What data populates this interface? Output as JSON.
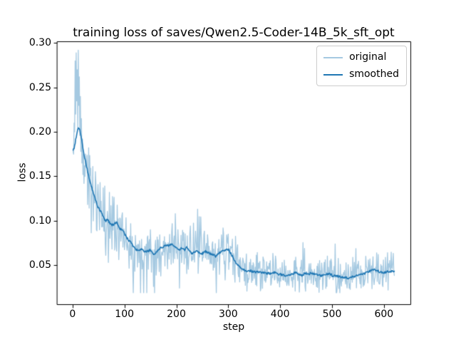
{
  "chart_data": {
    "type": "line",
    "title": "training loss of saves/Qwen2.5-Coder-14B_5k_sft_opt",
    "xlabel": "step",
    "ylabel": "loss",
    "xlim": [
      -30,
      651
    ],
    "ylim": [
      0.006,
      0.302
    ],
    "xticks": [
      0,
      100,
      200,
      300,
      400,
      500,
      600
    ],
    "xtick_labels": [
      "0",
      "100",
      "200",
      "300",
      "400",
      "500",
      "600"
    ],
    "yticks": [
      0.05,
      0.1,
      0.15,
      0.2,
      0.25,
      0.3
    ],
    "ytick_labels": [
      "0.05",
      "0.10",
      "0.15",
      "0.20",
      "0.25",
      "0.30"
    ],
    "grid": false,
    "background": "#ffffff",
    "spine_color": "#000000",
    "legend": {
      "position": "upper-right",
      "border_color": "#cccccc",
      "entries": [
        "original",
        "smoothed"
      ]
    },
    "x_range": [
      1,
      620
    ],
    "series": [
      {
        "name": "original",
        "color": "#1f77b4",
        "alpha": 0.4,
        "linewidth": 1.3,
        "description": "raw noisy training loss; reconstructed as smoothed curve plus seeded noise",
        "head_start_step": 1,
        "head": [
          0.178,
          0.175,
          0.21,
          0.2,
          0.28,
          0.22,
          0.289,
          0.235,
          0.27,
          0.205,
          0.292,
          0.23,
          0.262,
          0.196,
          0.24,
          0.178,
          0.215,
          0.165,
          0.192,
          0.152,
          0.175,
          0.142,
          0.162,
          0.15
        ],
        "noise": {
          "seed": 11,
          "base": 0.004,
          "scale": 0.22,
          "spike_prob": 0.07,
          "spike_mult": 2.0,
          "clamp_min": 0.019,
          "clamp_max": 0.292
        }
      },
      {
        "name": "smoothed",
        "color": "#1f77b4",
        "alpha": 1.0,
        "linewidth": 1.6,
        "jitter": 0.0012,
        "jitter_seed": 99,
        "keypoints": {
          "x": [
            1,
            3,
            5,
            8,
            11,
            13,
            16,
            19,
            22,
            25,
            28,
            32,
            36,
            40,
            44,
            48,
            52,
            55,
            58,
            61,
            64,
            67,
            70,
            74,
            78,
            82,
            85,
            88,
            92,
            96,
            100,
            104,
            108,
            112,
            116,
            120,
            124,
            128,
            132,
            136,
            140,
            145,
            150,
            155,
            160,
            165,
            170,
            175,
            180,
            185,
            190,
            195,
            200,
            205,
            210,
            215,
            220,
            225,
            230,
            235,
            240,
            245,
            250,
            255,
            260,
            265,
            270,
            276,
            281,
            286,
            291,
            296,
            301,
            305,
            309,
            313,
            318,
            323,
            328,
            334,
            340,
            346,
            352,
            358,
            364,
            370,
            376,
            382,
            388,
            394,
            400,
            406,
            412,
            418,
            424,
            430,
            436,
            442,
            448,
            454,
            460,
            466,
            472,
            478,
            484,
            490,
            496,
            502,
            508,
            514,
            520,
            526,
            532,
            538,
            545,
            552,
            559,
            566,
            572,
            579,
            586,
            593,
            600,
            607,
            613,
            620
          ],
          "y": [
            0.18,
            0.181,
            0.188,
            0.198,
            0.205,
            0.204,
            0.197,
            0.186,
            0.174,
            0.166,
            0.158,
            0.148,
            0.139,
            0.131,
            0.124,
            0.117,
            0.112,
            0.11,
            0.106,
            0.102,
            0.1,
            0.102,
            0.099,
            0.096,
            0.095,
            0.097,
            0.099,
            0.094,
            0.091,
            0.089,
            0.086,
            0.081,
            0.078,
            0.077,
            0.072,
            0.069,
            0.067,
            0.066,
            0.068,
            0.066,
            0.065,
            0.066,
            0.067,
            0.062,
            0.064,
            0.067,
            0.07,
            0.071,
            0.072,
            0.072,
            0.074,
            0.072,
            0.069,
            0.067,
            0.069,
            0.067,
            0.07,
            0.067,
            0.063,
            0.065,
            0.066,
            0.064,
            0.063,
            0.066,
            0.064,
            0.063,
            0.062,
            0.06,
            0.063,
            0.065,
            0.066,
            0.067,
            0.068,
            0.063,
            0.059,
            0.054,
            0.05,
            0.047,
            0.045,
            0.0435,
            0.044,
            0.043,
            0.0425,
            0.042,
            0.042,
            0.041,
            0.0405,
            0.041,
            0.042,
            0.04,
            0.0395,
            0.039,
            0.0385,
            0.0395,
            0.04,
            0.042,
            0.04,
            0.038,
            0.0415,
            0.04,
            0.041,
            0.0405,
            0.039,
            0.038,
            0.0385,
            0.0395,
            0.04,
            0.038,
            0.038,
            0.037,
            0.0365,
            0.036,
            0.0355,
            0.037,
            0.038,
            0.039,
            0.0395,
            0.042,
            0.0435,
            0.0445,
            0.0445,
            0.042,
            0.042,
            0.043,
            0.0435,
            0.0425
          ]
        }
      }
    ]
  }
}
